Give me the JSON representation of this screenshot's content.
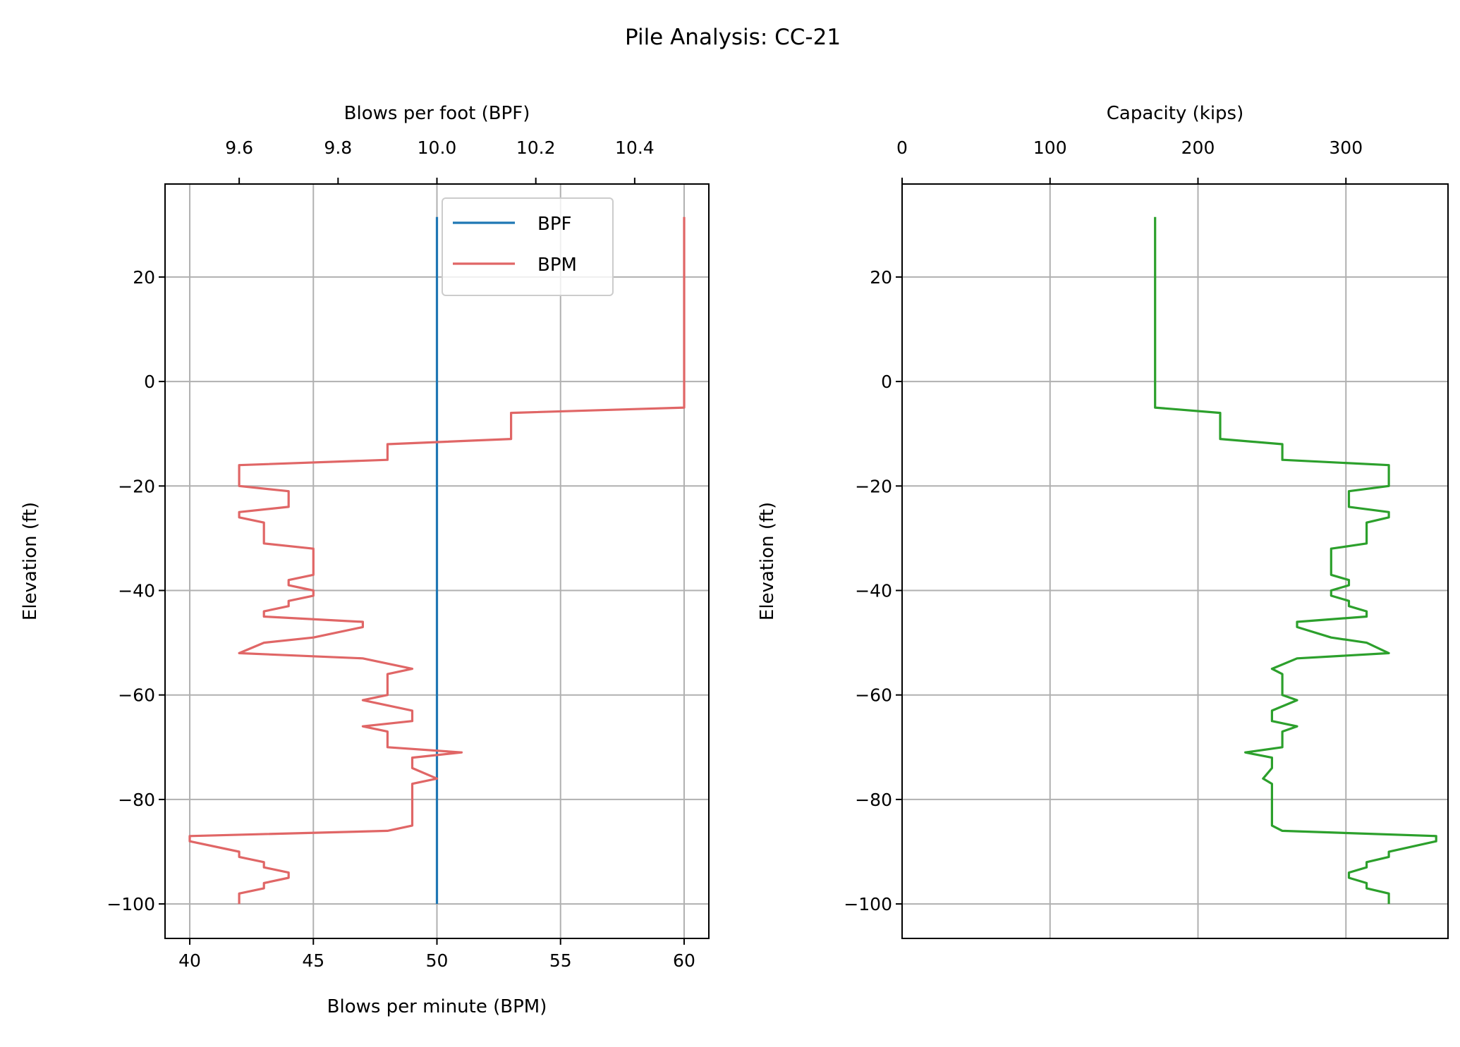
{
  "chart_data": [
    {
      "type": "line",
      "title": "Pile Analysis: CC-21",
      "panel": "left",
      "xlabel": "Blows per minute (BPM)",
      "xlabel_top": "Blows per foot (BPF)",
      "ylabel": "Elevation (ft)",
      "xlim": [
        39,
        61
      ],
      "xlim_top": [
        9.45,
        10.55
      ],
      "ylim": [
        -106.6,
        37.8
      ],
      "xticks": [
        "40",
        "45",
        "50",
        "55",
        "60"
      ],
      "xticks_top": [
        "9.6",
        "9.8",
        "10.0",
        "10.2",
        "10.4"
      ],
      "yticks": [
        "20",
        "0",
        "−20",
        "−40",
        "−60",
        "−80",
        "−100"
      ],
      "grid": true,
      "legend": {
        "position": "top-right",
        "entries": [
          "BPF",
          "BPM"
        ]
      },
      "series": [
        {
          "name": "BPF",
          "axis": "top",
          "color": "#1f77b4",
          "x": [
            10.0,
            10.0
          ],
          "elevation": [
            31.5,
            -100
          ]
        },
        {
          "name": "BPM",
          "axis": "bottom",
          "color": "#e06666",
          "x": [
            60,
            60,
            53,
            53,
            48,
            48,
            42,
            42,
            44,
            44,
            42,
            42,
            43,
            43,
            45,
            45,
            44,
            44,
            45,
            45,
            44,
            44,
            43,
            43,
            47,
            47,
            45,
            43,
            42,
            47,
            49,
            48,
            48,
            47,
            49,
            49,
            47,
            48,
            48,
            51,
            49,
            49,
            50,
            49,
            49,
            48,
            40,
            40,
            42,
            42,
            43,
            43,
            44,
            44,
            43,
            43,
            42,
            42
          ],
          "elevation": [
            31.5,
            -5,
            -6,
            -11,
            -12,
            -15,
            -16,
            -20,
            -21,
            -24,
            -25,
            -26,
            -27,
            -31,
            -32,
            -37,
            -38,
            -39,
            -40,
            -41,
            -42,
            -43,
            -44,
            -45,
            -46,
            -47,
            -49,
            -50,
            -52,
            -53,
            -55,
            -56,
            -60,
            -61,
            -63,
            -65,
            -66,
            -67,
            -70,
            -71,
            -72,
            -74,
            -76,
            -77,
            -85,
            -86,
            -87,
            -88,
            -90,
            -91,
            -92,
            -93,
            -94,
            -95,
            -96,
            -97,
            -98,
            -100
          ]
        }
      ]
    },
    {
      "type": "line",
      "panel": "right",
      "xlabel_top": "Capacity (kips)",
      "ylabel": "Elevation (ft)",
      "xlim": [
        0,
        369
      ],
      "ylim": [
        -106.6,
        37.8
      ],
      "xticks_top": [
        "0",
        "100",
        "200",
        "300"
      ],
      "yticks": [
        "20",
        "0",
        "−20",
        "−40",
        "−60",
        "−80",
        "−100"
      ],
      "grid": true,
      "series": [
        {
          "name": "Capacity",
          "color": "#2ca02c",
          "x": [
            171,
            171,
            215,
            215,
            257,
            257,
            329,
            329,
            302,
            302,
            329,
            329,
            314,
            314,
            290,
            290,
            302,
            302,
            290,
            290,
            302,
            302,
            314,
            314,
            267,
            267,
            290,
            314,
            329,
            267,
            250,
            257,
            257,
            267,
            250,
            250,
            267,
            257,
            257,
            232,
            250,
            250,
            244,
            250,
            250,
            257,
            361,
            361,
            329,
            329,
            314,
            314,
            302,
            302,
            314,
            314,
            329,
            329
          ],
          "elevation": [
            31.5,
            -5,
            -6,
            -11,
            -12,
            -15,
            -16,
            -20,
            -21,
            -24,
            -25,
            -26,
            -27,
            -31,
            -32,
            -37,
            -38,
            -39,
            -40,
            -41,
            -42,
            -43,
            -44,
            -45,
            -46,
            -47,
            -49,
            -50,
            -52,
            -53,
            -55,
            -56,
            -60,
            -61,
            -63,
            -65,
            -66,
            -67,
            -70,
            -71,
            -72,
            -74,
            -76,
            -77,
            -85,
            -86,
            -87,
            -88,
            -90,
            -91,
            -92,
            -93,
            -94,
            -95,
            -96,
            -97,
            -98,
            -100
          ]
        }
      ]
    }
  ]
}
